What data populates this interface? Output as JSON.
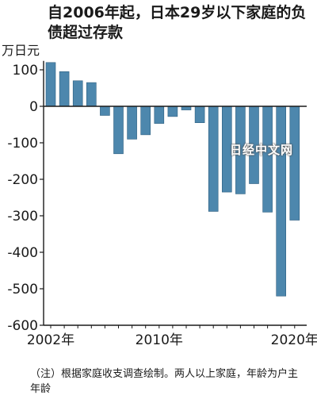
{
  "title": "自2006年起，日本29岁以下家庭的负债超过存款",
  "unit": "万日元",
  "watermark": "日经中文网",
  "note": "（注）根据家庭收支调查绘制。两人以上家庭，年龄为户主年龄",
  "chart_data": {
    "type": "bar",
    "title": "自2006年起，日本29岁以下家庭的负债超过存款",
    "ylabel": "万日元",
    "xlabel": "",
    "ylim": [
      -600,
      120
    ],
    "yticks": [
      100,
      0,
      -100,
      -200,
      -300,
      -400,
      -500,
      -600
    ],
    "x_tick_labels": [
      {
        "index": 0,
        "label": "2002年"
      },
      {
        "index": 8,
        "label": "2010年"
      },
      {
        "index": 18,
        "label": "2020年"
      }
    ],
    "categories": [
      "2002",
      "2003",
      "2004",
      "2005",
      "2006",
      "2007",
      "2008",
      "2009",
      "2010",
      "2011",
      "2012",
      "2013",
      "2014",
      "2015",
      "2016",
      "2017",
      "2018",
      "2019",
      "2020"
    ],
    "values": [
      120,
      95,
      70,
      65,
      -25,
      -130,
      -90,
      -78,
      -47,
      -28,
      -10,
      -45,
      -288,
      -235,
      -240,
      -212,
      -290,
      -520,
      -312
    ],
    "bar_color": "#4d87ad",
    "grid": false
  }
}
